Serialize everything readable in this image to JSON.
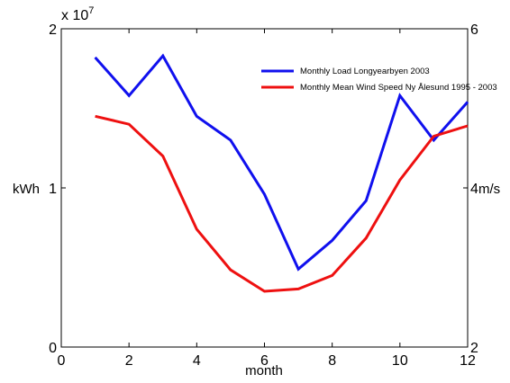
{
  "chart_data": {
    "type": "line",
    "xlabel": "month",
    "ylabel_left": "kWh",
    "ylabel_right": "m/s",
    "x_ticks": [
      "0",
      "2",
      "4",
      "6",
      "8",
      "10",
      "12"
    ],
    "y_left_ticks": [
      "0",
      "1",
      "2"
    ],
    "y_left_exponent": "x 10",
    "y_left_exponent_power": "7",
    "y_right_ticks": [
      "2",
      "4",
      "6"
    ],
    "xlim": [
      0,
      12
    ],
    "ylim_left": [
      0,
      20000000
    ],
    "ylim_right": [
      2,
      6
    ],
    "grid": false,
    "legend_position": "top-right",
    "series": [
      {
        "name": "Monthly Load Longyearbyen 2003",
        "axis": "left",
        "color": "#1010ee",
        "x": [
          1,
          2,
          3,
          4,
          5,
          6,
          7,
          8,
          9,
          10,
          11,
          12
        ],
        "values": [
          18200000,
          15800000,
          18300000,
          14500000,
          13000000,
          9600000,
          4900000,
          6700000,
          9200000,
          15800000,
          13000000,
          15400000
        ]
      },
      {
        "name": "Monthly Mean Wind Speed Ny Ålesund 1995 - 2003",
        "axis": "right",
        "color": "#ee1010",
        "x": [
          1,
          2,
          3,
          4,
          5,
          6,
          7,
          8,
          9,
          10,
          11,
          12
        ],
        "values": [
          4.9,
          4.8,
          4.4,
          3.48,
          2.97,
          2.7,
          2.73,
          2.9,
          3.37,
          4.1,
          4.65,
          4.78
        ]
      }
    ]
  }
}
